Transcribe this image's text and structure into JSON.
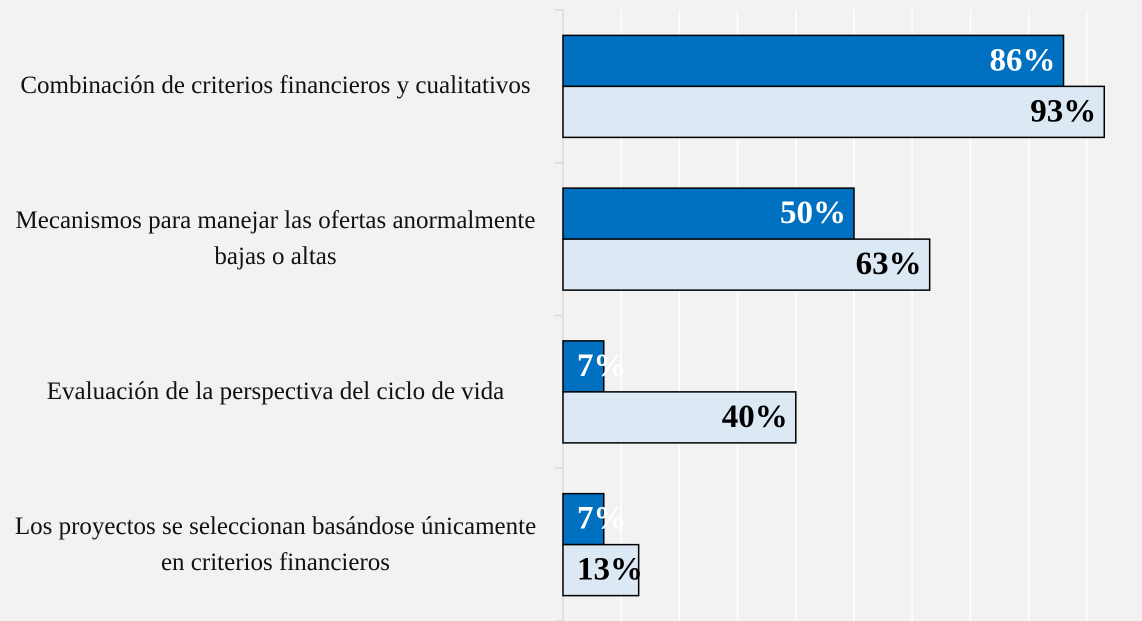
{
  "chart_data": {
    "type": "bar",
    "orientation": "horizontal",
    "categories": [
      "Combinación de criterios financieros y cualitativos",
      "Mecanismos para manejar las ofertas anormalmente bajas o altas",
      "Evaluación de la perspectiva del ciclo de vida",
      "Los proyectos se seleccionan basándose únicamente en criterios financieros"
    ],
    "series": [
      {
        "color": "#0070c0",
        "label_color": "#ffffff",
        "values": [
          86,
          50,
          7,
          7
        ],
        "value_labels": [
          "86%",
          "50%",
          "7%",
          "7%"
        ]
      },
      {
        "color": "#dce9f5",
        "label_color": "#000000",
        "values": [
          93,
          63,
          40,
          13
        ],
        "value_labels": [
          "93%",
          "63%",
          "40%",
          "13%"
        ]
      }
    ],
    "xlim": [
      0,
      100
    ],
    "xticks": [
      0,
      10,
      20,
      30,
      40,
      50,
      60,
      70,
      80,
      90,
      100
    ],
    "grid": true
  }
}
